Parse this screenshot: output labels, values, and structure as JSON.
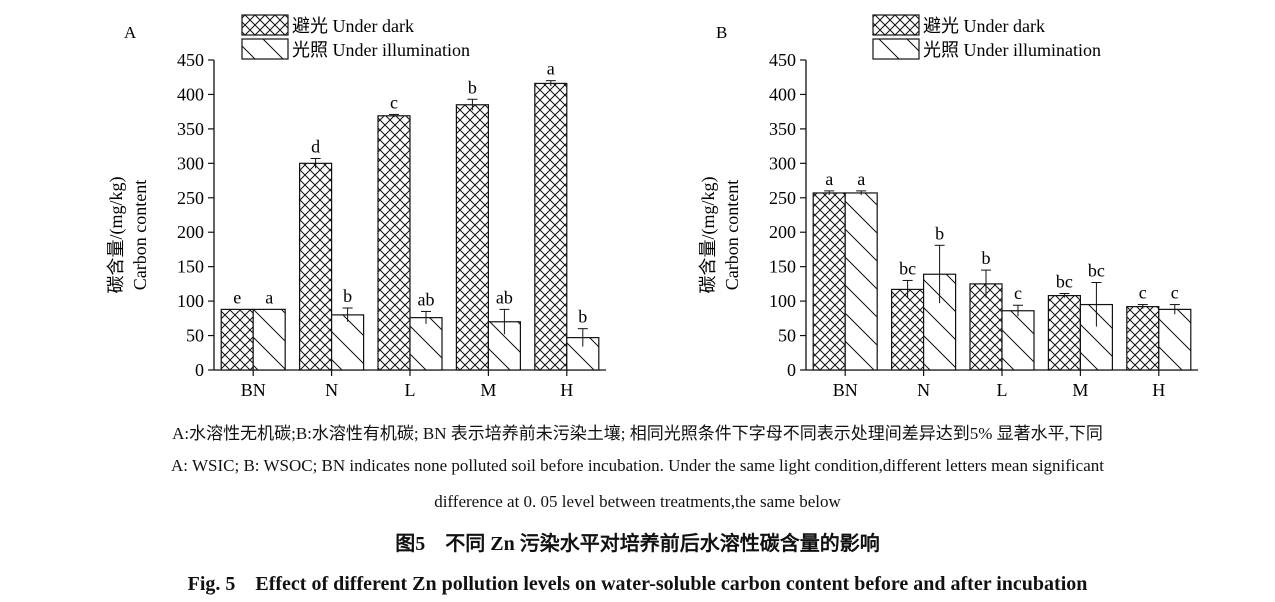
{
  "legend": {
    "dark": "避光 Under dark",
    "light": "光照 Under illumination"
  },
  "colors": {
    "ink": "#111111",
    "background": "#ffffff"
  },
  "chart_data": [
    {
      "type": "bar",
      "panel_label": "A",
      "ylabel_cn": "碳含量/(mg/kg)",
      "ylabel_en": "Carbon content",
      "ylim": [
        0,
        450
      ],
      "yticks": [
        0,
        50,
        100,
        150,
        200,
        250,
        300,
        350,
        400,
        450
      ],
      "categories": [
        "BN",
        "N",
        "L",
        "M",
        "H"
      ],
      "legend_position": "top",
      "series": [
        {
          "name": "避光 Under dark",
          "pattern": "crosshatch",
          "values": [
            88,
            300,
            369,
            385,
            416
          ],
          "errors": [
            0,
            7,
            2,
            8,
            4
          ],
          "letters": [
            "e",
            "d",
            "c",
            "b",
            "a"
          ]
        },
        {
          "name": "光照 Under illumination",
          "pattern": "backslash",
          "values": [
            88,
            80,
            76,
            70,
            47
          ],
          "errors": [
            0,
            10,
            9,
            18,
            13
          ],
          "letters": [
            "a",
            "b",
            "ab",
            "ab",
            "b"
          ]
        }
      ]
    },
    {
      "type": "bar",
      "panel_label": "B",
      "ylabel_cn": "碳含量/(mg/kg)",
      "ylabel_en": "Carbon content",
      "ylim": [
        0,
        450
      ],
      "yticks": [
        0,
        50,
        100,
        150,
        200,
        250,
        300,
        350,
        400,
        450
      ],
      "categories": [
        "BN",
        "N",
        "L",
        "M",
        "H"
      ],
      "legend_position": "top",
      "series": [
        {
          "name": "避光 Under dark",
          "pattern": "crosshatch",
          "values": [
            257,
            117,
            125,
            108,
            92
          ],
          "errors": [
            3,
            13,
            20,
            3,
            3
          ],
          "letters": [
            "a",
            "bc",
            "b",
            "bc",
            "c"
          ]
        },
        {
          "name": "光照 Under illumination",
          "pattern": "backslash",
          "values": [
            257,
            139,
            86,
            95,
            88
          ],
          "errors": [
            3,
            42,
            8,
            32,
            7
          ],
          "letters": [
            "a",
            "b",
            "c",
            "bc",
            "c"
          ]
        }
      ]
    }
  ],
  "caption": {
    "line1": "A:水溶性无机碳;B:水溶性有机碳; BN 表示培养前未污染土壤; 相同光照条件下字母不同表示处理间差异达到5% 显著水平,下同",
    "line2": "A: WSIC; B: WSOC; BN indicates none polluted soil before incubation. Under the same light condition,different letters mean significant",
    "line3": "difference at 0. 05 level between treatments,the same below",
    "title_cn": "图5　不同 Zn 污染水平对培养前后水溶性碳含量的影响",
    "title_en": "Fig. 5　Effect of different Zn pollution levels on water-soluble carbon content before and after incubation"
  }
}
